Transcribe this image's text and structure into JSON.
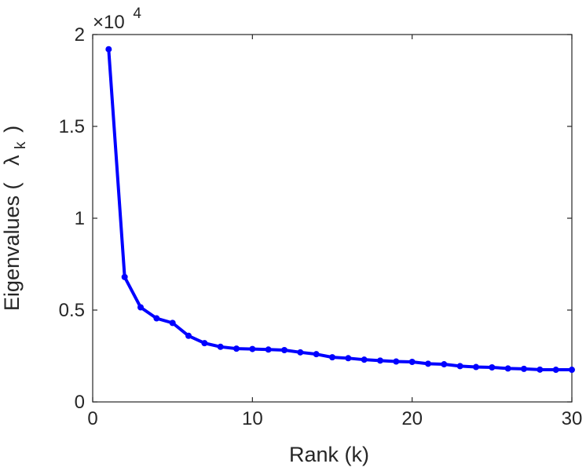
{
  "chart_data": {
    "type": "line",
    "title": "",
    "xlabel": "Rank (k)",
    "ylabel": "Eigenvalues (",
    "ylabel_symbol": "λ",
    "ylabel_subscript": "k",
    "ylabel_close": ")",
    "y_multiplier": {
      "base": "×10",
      "exponent": "4"
    },
    "xlim": [
      0,
      30
    ],
    "ylim": [
      0,
      20000
    ],
    "x_ticks": [
      0,
      10,
      20,
      30
    ],
    "x_tick_labels": [
      "0",
      "10",
      "20",
      "30"
    ],
    "y_ticks": [
      0,
      5000,
      10000,
      15000,
      20000
    ],
    "y_tick_labels": [
      "0",
      "0.5",
      "1",
      "1.5",
      "2"
    ],
    "grid": false,
    "color": "#0000ff",
    "series": [
      {
        "x": [
          1,
          2,
          3,
          4,
          5,
          6,
          7,
          8,
          9,
          10,
          11,
          12,
          13,
          14,
          15,
          16,
          17,
          18,
          19,
          20,
          21,
          22,
          23,
          24,
          25,
          26,
          27,
          28,
          29,
          30
        ],
        "values": [
          19200,
          6800,
          5150,
          4550,
          4300,
          3600,
          3200,
          3000,
          2900,
          2880,
          2850,
          2820,
          2700,
          2600,
          2430,
          2380,
          2300,
          2250,
          2200,
          2180,
          2080,
          2050,
          1950,
          1900,
          1880,
          1820,
          1800,
          1760,
          1750,
          1750
        ]
      }
    ]
  }
}
